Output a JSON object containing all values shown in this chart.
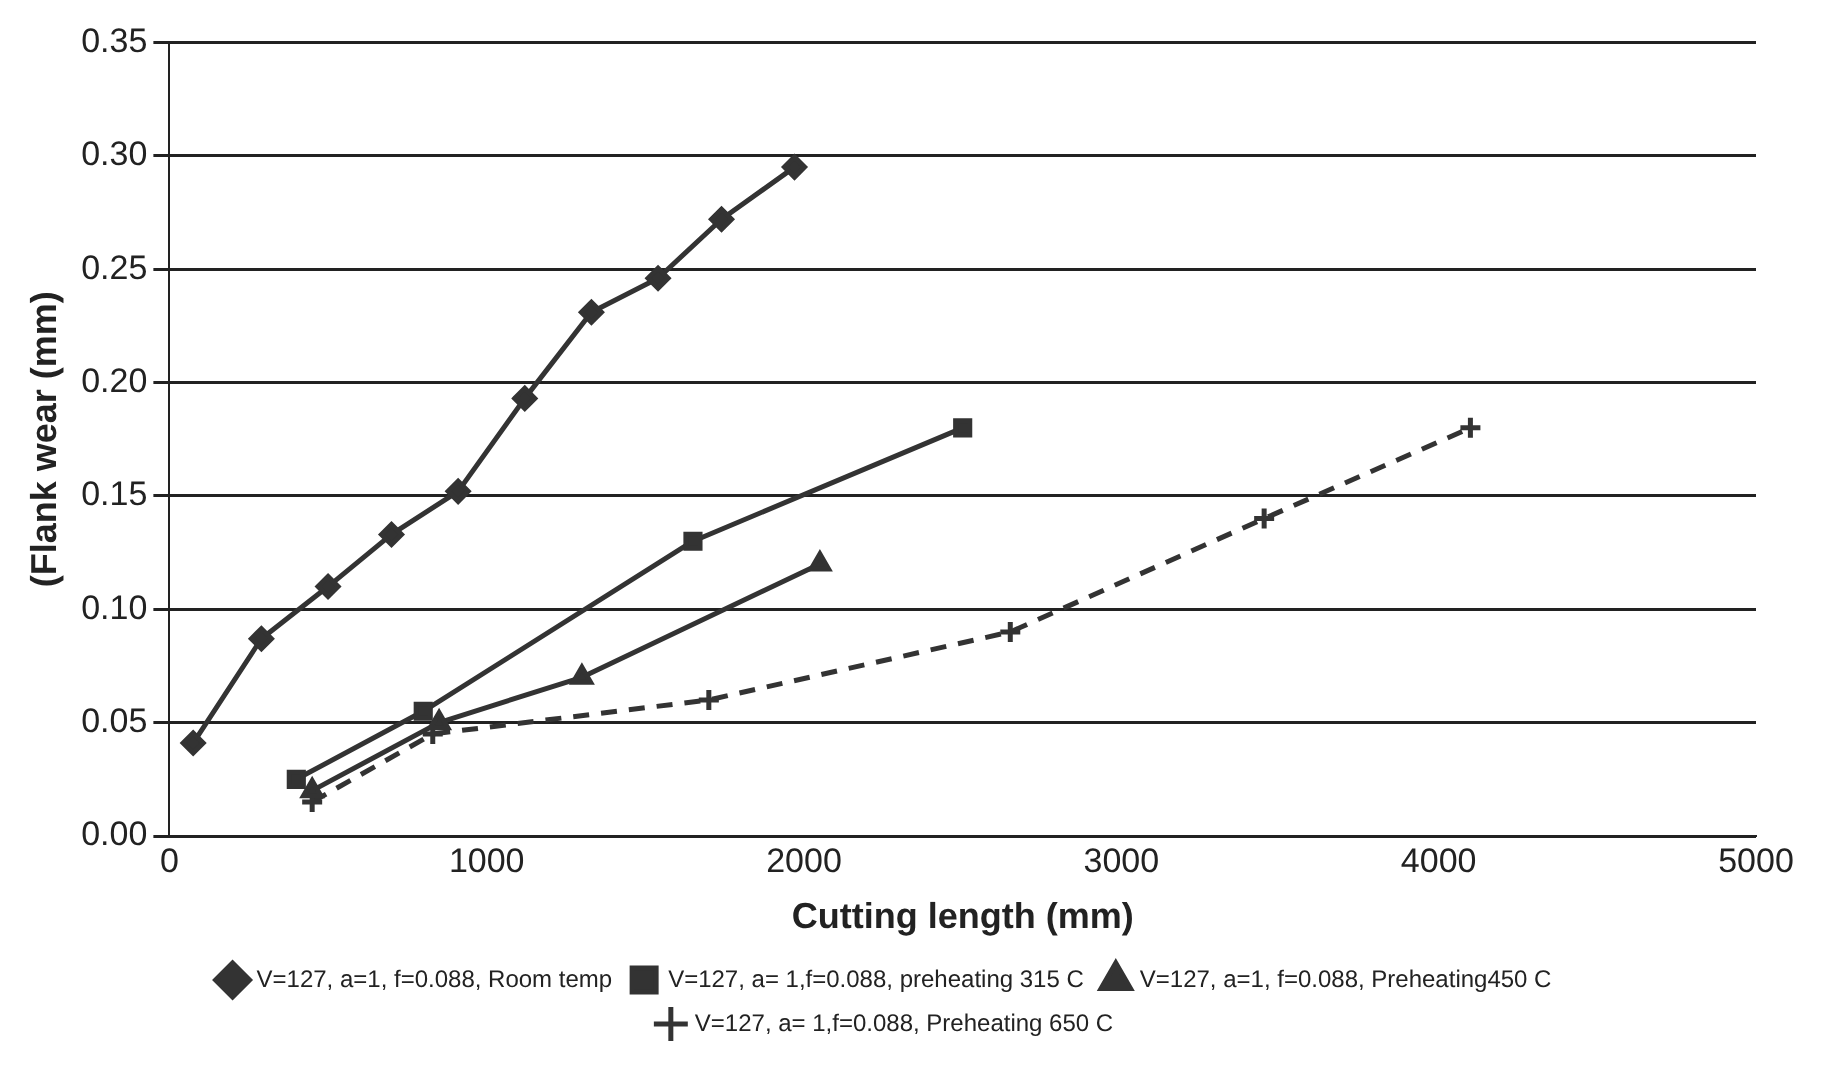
{
  "chart_data": {
    "type": "line",
    "xlabel": "Cutting length (mm)",
    "ylabel": "(Flank wear (mm)",
    "xlim": [
      0,
      5000
    ],
    "xticks": [
      0,
      1000,
      2000,
      3000,
      4000,
      5000
    ],
    "ylim": [
      0,
      0.35
    ],
    "yticks": [
      {
        "value": 0,
        "label": "0.00"
      },
      {
        "value": 0.05,
        "label": "0.05"
      },
      {
        "value": 0.1,
        "label": "0.10"
      },
      {
        "value": 0.15,
        "label": "0.15"
      },
      {
        "value": 0.2,
        "label": "0.20"
      },
      {
        "value": 0.25,
        "label": "0.25"
      },
      {
        "value": 0.3,
        "label": "0.30"
      },
      {
        "value": 0.35,
        "label": "0.35"
      }
    ],
    "grid": "y",
    "legend": "bottom",
    "series": [
      {
        "name": "V=127, a=1, f=0.088, Room temp",
        "color": "#333333",
        "marker": "diamond",
        "line_style": "solid",
        "x": [
          75,
          290,
          500,
          700,
          910,
          1120,
          1330,
          1540,
          1740,
          1970
        ],
        "values": [
          0.041,
          0.087,
          0.11,
          0.133,
          0.152,
          0.193,
          0.231,
          0.246,
          0.272,
          0.295
        ]
      },
      {
        "name": "V=127, a= 1,f=0.088, preheating 315 C",
        "color": "#333333",
        "marker": "square",
        "line_style": "solid",
        "x": [
          400,
          800,
          1650,
          2500
        ],
        "values": [
          0.025,
          0.055,
          0.13,
          0.18
        ]
      },
      {
        "name": "V=127, a=1, f=0.088, Preheating450 C",
        "color": "#333333",
        "marker": "triangle",
        "line_style": "solid",
        "x": [
          450,
          850,
          1300,
          2050
        ],
        "values": [
          0.02,
          0.05,
          0.07,
          0.12
        ]
      },
      {
        "name": "V=127, a= 1,f=0.088, Preheating 650 C",
        "color": "#333333",
        "marker": "cross",
        "line_style": "dashed",
        "x": [
          450,
          830,
          1700,
          2650,
          3450,
          4100
        ],
        "values": [
          0.015,
          0.045,
          0.06,
          0.09,
          0.14,
          0.18
        ]
      }
    ]
  }
}
